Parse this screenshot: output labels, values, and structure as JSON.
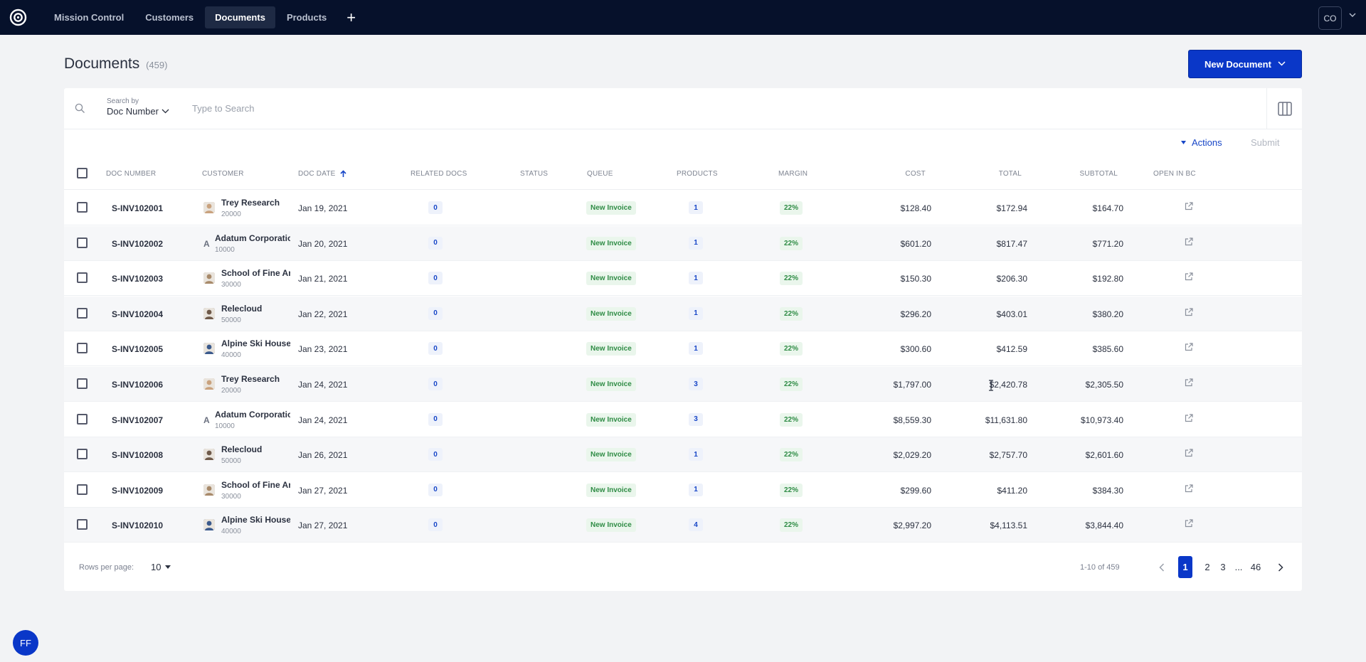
{
  "nav": {
    "logo_icon": "target-logo-icon",
    "items": [
      {
        "label": "Mission Control"
      },
      {
        "label": "Customers"
      },
      {
        "label": "Documents"
      },
      {
        "label": "Products"
      }
    ],
    "active_index": 2,
    "plus_label": "+",
    "user_initials": "CO"
  },
  "header": {
    "title": "Documents",
    "count": "(459)",
    "new_button": "New Document"
  },
  "search": {
    "by_label": "Search by",
    "by_value": "Doc Number",
    "placeholder": "Type to Search"
  },
  "toolbar": {
    "actions": "Actions",
    "submit": "Submit"
  },
  "columns": {
    "doc_number": "DOC NUMBER",
    "customer": "CUSTOMER",
    "doc_date": "DOC DATE",
    "related_docs": "RELATED DOCS",
    "status": "STATUS",
    "queue": "QUEUE",
    "products": "PRODUCTS",
    "margin": "MARGIN",
    "cost": "COST",
    "total": "TOTAL",
    "subtotal": "SUBTOTAL",
    "open_in_bc": "OPEN IN BC"
  },
  "rows": [
    {
      "doc": "S-INV102001",
      "customer": "Trey Research",
      "cust_id": "20000",
      "avatar": "photo",
      "avatar_color": "#c9a27e",
      "date": "Jan 19, 2021",
      "related": "0",
      "queue": "New Invoice",
      "products": "1",
      "margin": "22%",
      "cost": "$128.40",
      "total": "$172.94",
      "subtotal": "$164.70"
    },
    {
      "doc": "S-INV102002",
      "customer": "Adatum Corporation",
      "cust_id": "10000",
      "avatar": "A",
      "avatar_color": "#6b7180",
      "date": "Jan 20, 2021",
      "related": "0",
      "queue": "New Invoice",
      "products": "1",
      "margin": "22%",
      "cost": "$601.20",
      "total": "$817.47",
      "subtotal": "$771.20"
    },
    {
      "doc": "S-INV102003",
      "customer": "School of Fine Art",
      "cust_id": "30000",
      "avatar": "photo",
      "avatar_color": "#a88a6a",
      "date": "Jan 21, 2021",
      "related": "0",
      "queue": "New Invoice",
      "products": "1",
      "margin": "22%",
      "cost": "$150.30",
      "total": "$206.30",
      "subtotal": "$192.80"
    },
    {
      "doc": "S-INV102004",
      "customer": "Relecloud",
      "cust_id": "50000",
      "avatar": "photo",
      "avatar_color": "#6f5a4a",
      "date": "Jan 22, 2021",
      "related": "0",
      "queue": "New Invoice",
      "products": "1",
      "margin": "22%",
      "cost": "$296.20",
      "total": "$403.01",
      "subtotal": "$380.20"
    },
    {
      "doc": "S-INV102005",
      "customer": "Alpine Ski House",
      "cust_id": "40000",
      "avatar": "photo",
      "avatar_color": "#3b5a8c",
      "date": "Jan 23, 2021",
      "related": "0",
      "queue": "New Invoice",
      "products": "1",
      "margin": "22%",
      "cost": "$300.60",
      "total": "$412.59",
      "subtotal": "$385.60"
    },
    {
      "doc": "S-INV102006",
      "customer": "Trey Research",
      "cust_id": "20000",
      "avatar": "photo",
      "avatar_color": "#c9a27e",
      "date": "Jan 24, 2021",
      "related": "0",
      "queue": "New Invoice",
      "products": "3",
      "margin": "22%",
      "cost": "$1,797.00",
      "total": "$2,420.78",
      "subtotal": "$2,305.50"
    },
    {
      "doc": "S-INV102007",
      "customer": "Adatum Corporation",
      "cust_id": "10000",
      "avatar": "A",
      "avatar_color": "#6b7180",
      "date": "Jan 24, 2021",
      "related": "0",
      "queue": "New Invoice",
      "products": "3",
      "margin": "22%",
      "cost": "$8,559.30",
      "total": "$11,631.80",
      "subtotal": "$10,973.40"
    },
    {
      "doc": "S-INV102008",
      "customer": "Relecloud",
      "cust_id": "50000",
      "avatar": "photo",
      "avatar_color": "#6f5a4a",
      "date": "Jan 26, 2021",
      "related": "0",
      "queue": "New Invoice",
      "products": "1",
      "margin": "22%",
      "cost": "$2,029.20",
      "total": "$2,757.70",
      "subtotal": "$2,601.60"
    },
    {
      "doc": "S-INV102009",
      "customer": "School of Fine Art",
      "cust_id": "30000",
      "avatar": "photo",
      "avatar_color": "#a88a6a",
      "date": "Jan 27, 2021",
      "related": "0",
      "queue": "New Invoice",
      "products": "1",
      "margin": "22%",
      "cost": "$299.60",
      "total": "$411.20",
      "subtotal": "$384.30"
    },
    {
      "doc": "S-INV102010",
      "customer": "Alpine Ski House",
      "cust_id": "40000",
      "avatar": "photo",
      "avatar_color": "#3b5a8c",
      "date": "Jan 27, 2021",
      "related": "0",
      "queue": "New Invoice",
      "products": "4",
      "margin": "22%",
      "cost": "$2,997.20",
      "total": "$4,113.51",
      "subtotal": "$3,844.40"
    }
  ],
  "footer": {
    "rows_per_page_label": "Rows per page:",
    "rows_per_page_value": "10",
    "range": "1-10 of 459",
    "pages": [
      "1",
      "2",
      "3",
      "...",
      "46"
    ],
    "current_page": "1"
  },
  "fab_initials": "FF",
  "colors": {
    "topbar": "#06112b",
    "primary": "#0a37c8",
    "badge_green": "#2f8c45",
    "badge_blue": "#1746c7"
  }
}
